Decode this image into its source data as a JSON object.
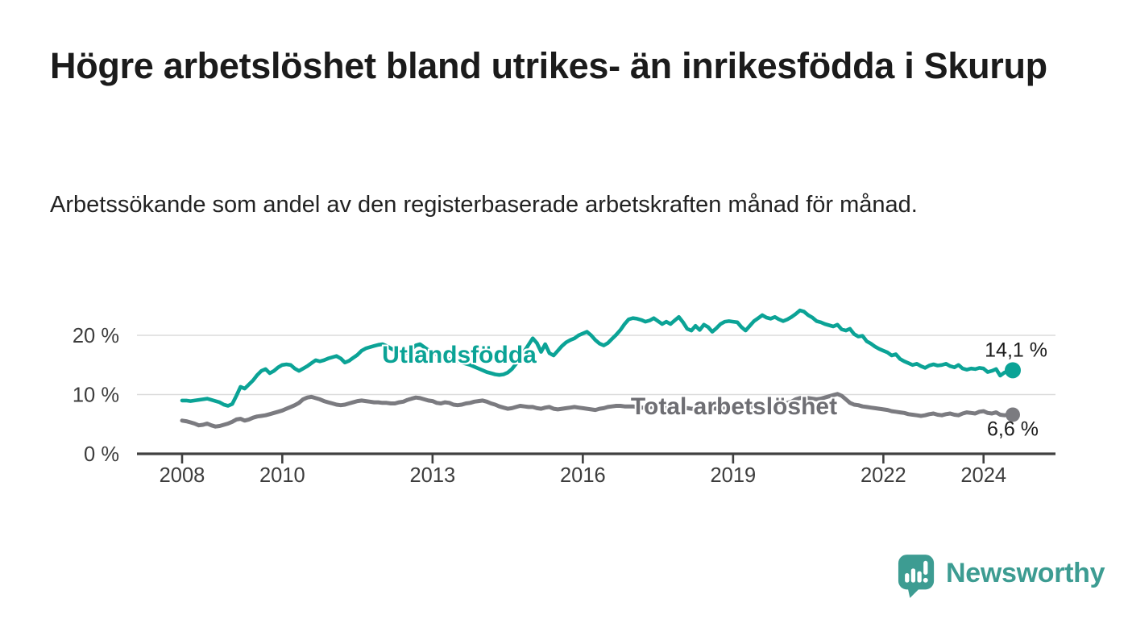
{
  "header": {
    "title": "Högre arbetslöshet bland utrikes- än inrikesfödda i Skurup",
    "subtitle": "Arbetssökande som andel av den registerbaserade arbetskraften månad för månad."
  },
  "branding": {
    "name": "Newsworthy",
    "icon": "bar-chart-speech-bubble-icon",
    "brand_color": "#3d9c92"
  },
  "chart_data": {
    "type": "line",
    "unit": "%",
    "grid": "horizontal",
    "x_start_year": 2008,
    "x_step_months": 1,
    "xlim": [
      2007.1,
      2025.4
    ],
    "ylim": [
      0,
      25.5
    ],
    "x_ticks": [
      {
        "label": "2008",
        "year": 2008
      },
      {
        "label": "2010",
        "year": 2010
      },
      {
        "label": "2013",
        "year": 2013
      },
      {
        "label": "2016",
        "year": 2016
      },
      {
        "label": "2019",
        "year": 2019
      },
      {
        "label": "2022",
        "year": 2022
      },
      {
        "label": "2024",
        "year": 2024
      }
    ],
    "y_ticks": [
      {
        "label": "0 %",
        "value": 0
      },
      {
        "label": "10 %",
        "value": 10
      },
      {
        "label": "20 %",
        "value": 20
      }
    ],
    "series": [
      {
        "name": "Utlandsfödda",
        "color": "#0ba396",
        "end_value": 14.1,
        "end_label": "14,1 %",
        "values": [
          9.0,
          9.0,
          8.9,
          9.0,
          9.1,
          9.2,
          9.3,
          9.1,
          8.9,
          8.7,
          8.3,
          8.1,
          8.4,
          9.8,
          11.3,
          11.0,
          11.7,
          12.4,
          13.3,
          14.0,
          14.3,
          13.6,
          14.0,
          14.6,
          15.0,
          15.1,
          15.0,
          14.4,
          14.0,
          14.4,
          14.8,
          15.3,
          15.8,
          15.6,
          15.8,
          16.1,
          16.3,
          16.5,
          16.1,
          15.4,
          15.7,
          16.2,
          16.7,
          17.4,
          17.8,
          18.0,
          18.2,
          18.4,
          18.5,
          18.2,
          17.8,
          17.4,
          16.9,
          16.7,
          17.2,
          17.7,
          18.3,
          18.5,
          18.0,
          17.5,
          17.1,
          16.8,
          16.5,
          16.3,
          16.0,
          15.8,
          15.6,
          15.4,
          15.2,
          15.0,
          14.7,
          14.4,
          14.1,
          13.8,
          13.6,
          13.4,
          13.3,
          13.4,
          13.7,
          14.3,
          15.2,
          16.2,
          17.3,
          18.4,
          19.5,
          18.7,
          17.2,
          18.5,
          17.0,
          16.6,
          17.4,
          18.2,
          18.8,
          19.2,
          19.5,
          20.0,
          20.3,
          20.6,
          20.0,
          19.2,
          18.6,
          18.3,
          18.7,
          19.4,
          20.1,
          20.9,
          21.9,
          22.7,
          22.9,
          22.8,
          22.6,
          22.3,
          22.5,
          22.9,
          22.4,
          21.9,
          22.3,
          21.9,
          22.5,
          23.1,
          22.2,
          21.1,
          20.8,
          21.6,
          20.9,
          21.8,
          21.4,
          20.6,
          21.2,
          21.9,
          22.3,
          22.4,
          22.3,
          22.2,
          21.4,
          20.8,
          21.6,
          22.4,
          22.9,
          23.4,
          23.0,
          22.8,
          23.1,
          22.7,
          22.4,
          22.7,
          23.1,
          23.6,
          24.2,
          24.0,
          23.4,
          23.0,
          22.4,
          22.2,
          21.9,
          21.7,
          21.5,
          21.8,
          21.0,
          20.8,
          21.1,
          20.2,
          19.8,
          19.9,
          19.0,
          18.6,
          18.1,
          17.7,
          17.4,
          17.1,
          16.6,
          16.8,
          16.0,
          15.6,
          15.3,
          15.0,
          15.2,
          14.8,
          14.5,
          14.9,
          15.1,
          14.9,
          15.0,
          15.2,
          14.8,
          14.6,
          15.0,
          14.4,
          14.2,
          14.4,
          14.3,
          14.5,
          14.4,
          13.8,
          14.0,
          14.3,
          13.2,
          13.7,
          14.0,
          14.1
        ]
      },
      {
        "name": "Total arbetslöshet",
        "color": "#7b7b80",
        "end_value": 6.6,
        "end_label": "6,6 %",
        "values": [
          5.6,
          5.5,
          5.3,
          5.1,
          4.8,
          4.9,
          5.1,
          4.8,
          4.6,
          4.7,
          4.9,
          5.1,
          5.4,
          5.8,
          5.9,
          5.6,
          5.8,
          6.1,
          6.3,
          6.4,
          6.5,
          6.7,
          6.9,
          7.1,
          7.3,
          7.6,
          7.9,
          8.2,
          8.6,
          9.2,
          9.5,
          9.6,
          9.4,
          9.2,
          8.9,
          8.7,
          8.5,
          8.3,
          8.2,
          8.3,
          8.5,
          8.7,
          8.9,
          9.0,
          8.9,
          8.8,
          8.7,
          8.7,
          8.6,
          8.6,
          8.5,
          8.5,
          8.7,
          8.8,
          9.1,
          9.3,
          9.5,
          9.4,
          9.2,
          9.0,
          8.9,
          8.6,
          8.5,
          8.7,
          8.6,
          8.3,
          8.2,
          8.3,
          8.5,
          8.6,
          8.8,
          8.9,
          9.0,
          8.8,
          8.5,
          8.3,
          8.0,
          7.8,
          7.6,
          7.7,
          7.9,
          8.1,
          8.0,
          7.9,
          7.9,
          7.7,
          7.6,
          7.8,
          7.9,
          7.6,
          7.5,
          7.6,
          7.7,
          7.8,
          7.9,
          7.8,
          7.7,
          7.6,
          7.5,
          7.4,
          7.6,
          7.7,
          7.9,
          8.0,
          8.1,
          8.1,
          8.0,
          8.0,
          8.0,
          7.9,
          7.8,
          7.8,
          7.9,
          7.9,
          7.8,
          7.7,
          7.7,
          7.8,
          7.8,
          7.9,
          7.8,
          7.7,
          7.6,
          7.6,
          7.7,
          7.7,
          7.8,
          7.7,
          7.6,
          7.7,
          7.8,
          7.9,
          7.9,
          8.0,
          7.9,
          7.8,
          7.9,
          8.0,
          8.1,
          8.0,
          8.0,
          8.1,
          8.2,
          8.3,
          8.4,
          8.6,
          8.8,
          9.2,
          9.4,
          9.5,
          9.4,
          9.3,
          9.2,
          9.3,
          9.5,
          9.7,
          9.9,
          10.1,
          9.8,
          9.2,
          8.6,
          8.3,
          8.2,
          8.0,
          7.9,
          7.8,
          7.7,
          7.6,
          7.5,
          7.4,
          7.2,
          7.1,
          7.0,
          6.9,
          6.7,
          6.6,
          6.5,
          6.4,
          6.5,
          6.7,
          6.8,
          6.6,
          6.5,
          6.7,
          6.8,
          6.6,
          6.5,
          6.8,
          7.0,
          6.9,
          6.8,
          7.1,
          7.2,
          6.9,
          6.8,
          7.0,
          6.6,
          6.5,
          6.6,
          6.6
        ]
      }
    ]
  }
}
